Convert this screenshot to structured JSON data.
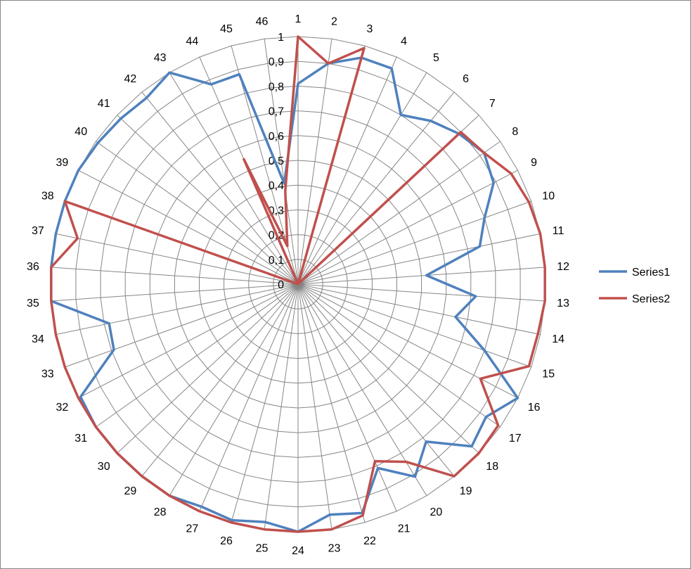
{
  "chart_data": {
    "type": "radar",
    "categories": [
      "1",
      "2",
      "3",
      "4",
      "5",
      "6",
      "7",
      "8",
      "9",
      "10",
      "11",
      "12",
      "13",
      "14",
      "15",
      "16",
      "17",
      "18",
      "19",
      "20",
      "21",
      "22",
      "23",
      "24",
      "25",
      "26",
      "27",
      "28",
      "29",
      "30",
      "31",
      "32",
      "33",
      "34",
      "35",
      "36",
      "37",
      "38",
      "39",
      "40",
      "41",
      "42",
      "43",
      "44",
      "45",
      "46"
    ],
    "rlim": [
      0,
      1
    ],
    "ticks": [
      "0",
      "0,1",
      "0,2",
      "0,3",
      "0,4",
      "0,5",
      "0,6",
      "0,7",
      "0,8",
      "0,9",
      "1"
    ],
    "tick_values": [
      0,
      0.1,
      0.2,
      0.3,
      0.4,
      0.5,
      0.6,
      0.7,
      0.8,
      0.9,
      1
    ],
    "grid": true,
    "legend_position": "right",
    "series": [
      {
        "name": "Series1",
        "color": "#4F81BD",
        "values": [
          0.81,
          0.9,
          0.95,
          0.95,
          0.8,
          0.85,
          0.89,
          0.92,
          0.89,
          0.8,
          0.75,
          0.52,
          0.72,
          0.65,
          0.8,
          1.0,
          0.93,
          0.96,
          0.82,
          0.91,
          0.81,
          0.96,
          0.94,
          1.0,
          0.97,
          0.99,
          0.98,
          1.0,
          1.0,
          1.0,
          1.0,
          0.99,
          0.79,
          0.78,
          1.0,
          1.0,
          1.0,
          1.0,
          1.0,
          0.99,
          0.98,
          0.97,
          1.0,
          0.88,
          0.88,
          0.41
        ]
      },
      {
        "name": "Series2",
        "color": "#C0504D",
        "values": [
          1.0,
          0.9,
          0.99,
          0.0,
          0.0,
          0.0,
          0.9,
          0.92,
          0.97,
          0.99,
          1.0,
          1.0,
          1.0,
          0.99,
          0.99,
          0.83,
          0.99,
          1.0,
          1.0,
          0.84,
          0.78,
          0.97,
          1.0,
          1.0,
          1.0,
          1.0,
          1.0,
          1.0,
          1.0,
          1.0,
          1.0,
          1.0,
          1.0,
          1.0,
          1.0,
          1.0,
          0.91,
          1.0,
          0.0,
          0.0,
          0.0,
          0.0,
          0.0,
          0.55,
          0.16,
          0.38
        ]
      }
    ]
  }
}
